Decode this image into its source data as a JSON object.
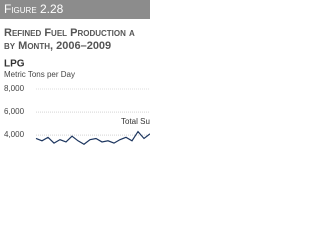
{
  "chart_data": {
    "type": "line",
    "figure_label": "Figure 2.28",
    "title": "Refined Fuel Production a",
    "subtitle": "by Month, 2006–2009",
    "panel_title": "LPG",
    "y_label": "Metric Tons per Day",
    "annotation": "Total Su",
    "categories": [
      null,
      null,
      null,
      null,
      null,
      null,
      null,
      null,
      null,
      null,
      null,
      null,
      null,
      null,
      null,
      null,
      null,
      null,
      null,
      null
    ],
    "values": [
      3700,
      3500,
      3800,
      3300,
      3600,
      3400,
      3900,
      3500,
      3200,
      3600,
      3700,
      3400,
      3500,
      3300,
      3600,
      3800,
      3500,
      4300,
      3700,
      4100
    ],
    "color": "#1c355e",
    "ylim": [
      2700,
      8000
    ],
    "yticks": [
      {
        "value": 8000,
        "label": "8,000"
      },
      {
        "value": 6000,
        "label": "6,000"
      },
      {
        "value": 4000,
        "label": "4,000"
      }
    ],
    "grid": true
  }
}
